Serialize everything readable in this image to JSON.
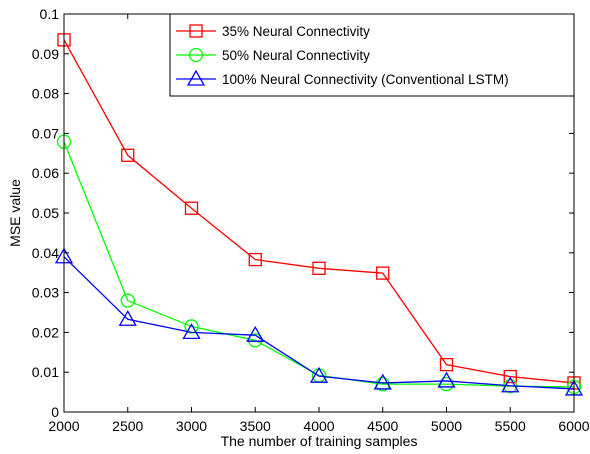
{
  "chart_data": {
    "type": "line",
    "title": "",
    "xlabel": "The number of training samples",
    "ylabel": "MSE value",
    "xlim": [
      2000,
      6000
    ],
    "ylim": [
      0,
      0.1
    ],
    "x": [
      2000,
      2500,
      3000,
      3500,
      4000,
      4500,
      5000,
      5500,
      6000
    ],
    "xticks": [
      "2000",
      "2500",
      "3000",
      "3500",
      "4000",
      "4500",
      "5000",
      "5500",
      "6000"
    ],
    "yticks": [
      "0",
      "0.01",
      "0.02",
      "0.03",
      "0.04",
      "0.05",
      "0.06",
      "0.07",
      "0.08",
      "0.09",
      "0.1"
    ],
    "grid": false,
    "legend_position": "top-right",
    "series": [
      {
        "name": "35% Neural Connectivity",
        "color": "#ff0000",
        "marker": "square",
        "values": [
          0.0935,
          0.0645,
          0.0512,
          0.0383,
          0.0361,
          0.0349,
          0.0119,
          0.0089,
          0.0073
        ]
      },
      {
        "name": "50% Neural Connectivity",
        "color": "#00ff00",
        "marker": "circle",
        "values": [
          0.0679,
          0.028,
          0.0215,
          0.018,
          0.0092,
          0.007,
          0.007,
          0.0065,
          0.0063
        ]
      },
      {
        "name": "100% Neural Connectivity (Conventional LSTM)",
        "color": "#0000ff",
        "marker": "triangle",
        "values": [
          0.039,
          0.0233,
          0.02,
          0.0193,
          0.009,
          0.0073,
          0.0078,
          0.0066,
          0.0058
        ]
      }
    ]
  }
}
